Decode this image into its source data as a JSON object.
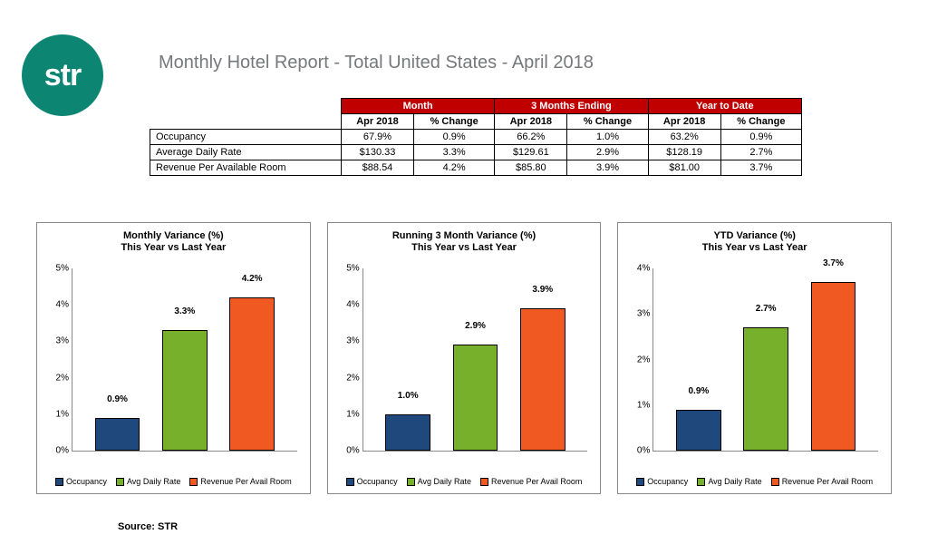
{
  "logo_text": "str",
  "title": "Monthly Hotel Report - Total United States - April 2018",
  "source": "Source: STR",
  "colors": {
    "logo_bg": "#0c8573",
    "header_red": "#c00000",
    "bar_occupancy": "#1f497d",
    "bar_adr": "#77b02a",
    "bar_revpar": "#f05a22",
    "grid": "#888888"
  },
  "table": {
    "group_headers": [
      "Month",
      "3 Months Ending",
      "Year to Date"
    ],
    "sub_headers": [
      "Apr 2018",
      "% Change"
    ],
    "rows": [
      {
        "label": "Occupancy",
        "cells": [
          "67.9%",
          "0.9%",
          "66.2%",
          "1.0%",
          "63.2%",
          "0.9%"
        ]
      },
      {
        "label": "Average Daily Rate",
        "cells": [
          "$130.33",
          "3.3%",
          "$129.61",
          "2.9%",
          "$128.19",
          "2.7%"
        ]
      },
      {
        "label": "Revenue Per Available Room",
        "cells": [
          "$88.54",
          "4.2%",
          "$85.80",
          "3.9%",
          "$81.00",
          "3.7%"
        ]
      }
    ]
  },
  "legend": [
    "Occupancy",
    "Avg Daily Rate",
    "Revenue Per Avail Room"
  ],
  "charts": [
    {
      "title_line1": "Monthly Variance (%)",
      "title_line2": "This Year vs Last Year",
      "ymax": 5,
      "ytick_step": 1,
      "bars": [
        {
          "label": "0.9%",
          "value": 0.9,
          "color_key": "bar_occupancy"
        },
        {
          "label": "3.3%",
          "value": 3.3,
          "color_key": "bar_adr"
        },
        {
          "label": "4.2%",
          "value": 4.2,
          "color_key": "bar_revpar"
        }
      ]
    },
    {
      "title_line1": "Running 3 Month Variance (%)",
      "title_line2": "This Year vs Last Year",
      "ymax": 5,
      "ytick_step": 1,
      "bars": [
        {
          "label": "1.0%",
          "value": 1.0,
          "color_key": "bar_occupancy"
        },
        {
          "label": "2.9%",
          "value": 2.9,
          "color_key": "bar_adr"
        },
        {
          "label": "3.9%",
          "value": 3.9,
          "color_key": "bar_revpar"
        }
      ]
    },
    {
      "title_line1": "YTD Variance (%)",
      "title_line2": "This Year vs Last Year",
      "ymax": 4,
      "ytick_step": 1,
      "bars": [
        {
          "label": "0.9%",
          "value": 0.9,
          "color_key": "bar_occupancy"
        },
        {
          "label": "2.7%",
          "value": 2.7,
          "color_key": "bar_adr"
        },
        {
          "label": "3.7%",
          "value": 3.7,
          "color_key": "bar_revpar"
        }
      ]
    }
  ]
}
